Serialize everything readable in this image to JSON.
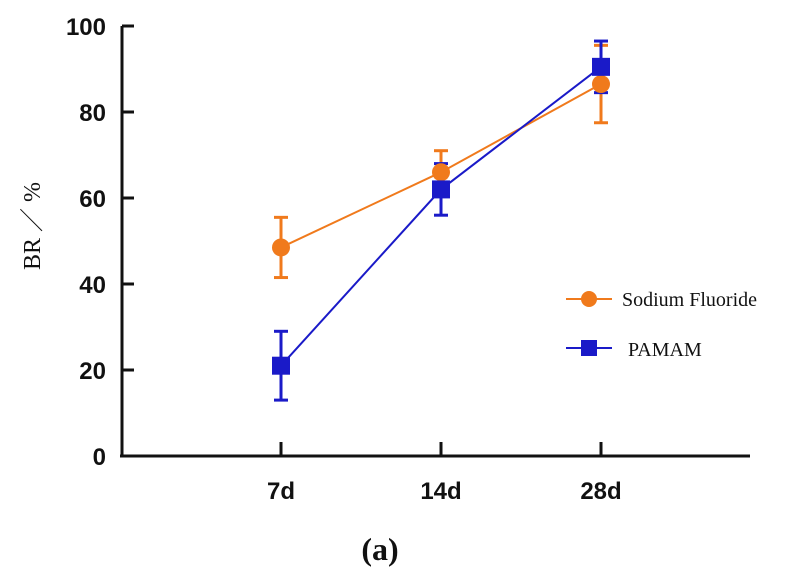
{
  "chart_data": {
    "type": "line",
    "categories": [
      "7d",
      "14d",
      "28d"
    ],
    "ylabel": "BR ／ %",
    "xlabel": "",
    "ylim": [
      0,
      100
    ],
    "yticks": [
      "0",
      "20",
      "40",
      "60",
      "80",
      "100"
    ],
    "panel_label": "(a)",
    "legend_placement": "right",
    "series": [
      {
        "name": "Sodium Fluoride",
        "color": "#f07a1c",
        "marker": "circle",
        "values": [
          48.5,
          66,
          86.5
        ],
        "error": [
          7,
          5,
          9
        ]
      },
      {
        "name": "PAMAM",
        "color": "#1a1ac8",
        "marker": "square",
        "values": [
          21,
          62,
          90.5
        ],
        "error": [
          8,
          6,
          6
        ]
      }
    ]
  }
}
